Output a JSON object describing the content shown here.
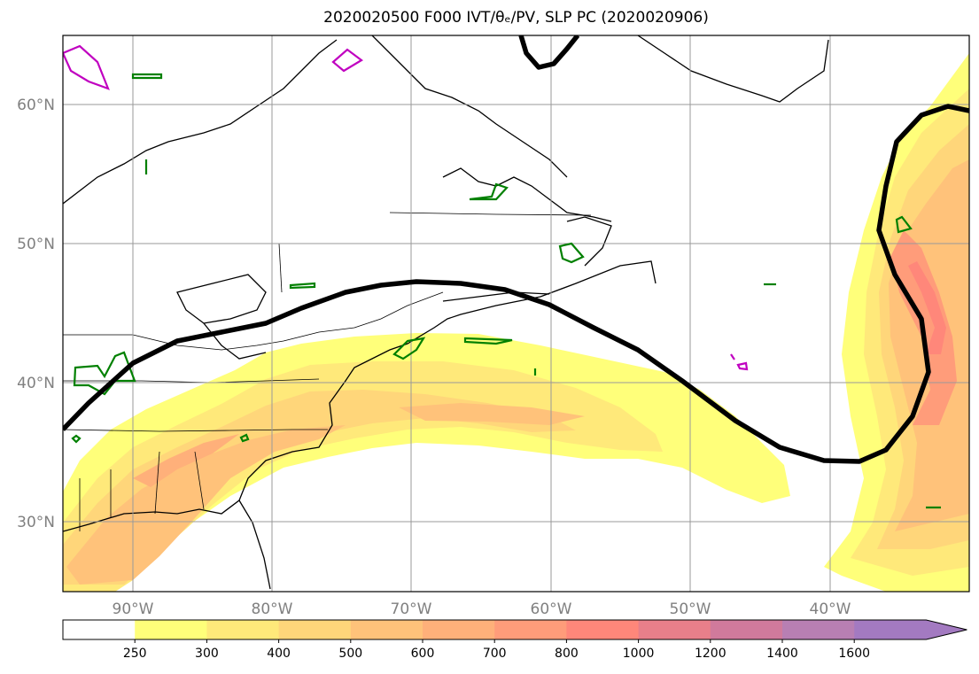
{
  "title": "2020020500 F000 IVT/θₑ/PV, SLP PC (2020020906)",
  "map": {
    "lon_range": [
      -95,
      -30
    ],
    "lat_range": [
      25,
      65
    ],
    "lon_ticks": [
      {
        "value": -90,
        "label": "90°W"
      },
      {
        "value": -80,
        "label": "80°W"
      },
      {
        "value": -70,
        "label": "70°W"
      },
      {
        "value": -60,
        "label": "60°W"
      },
      {
        "value": -50,
        "label": "50°W"
      },
      {
        "value": -40,
        "label": "40°W"
      }
    ],
    "lat_ticks": [
      {
        "value": 30,
        "label": "30°N"
      },
      {
        "value": 40,
        "label": "40°N"
      },
      {
        "value": 50,
        "label": "50°N"
      },
      {
        "value": 60,
        "label": "60°N"
      }
    ],
    "grid": true,
    "tick_label_color": "#808080"
  },
  "colorbar": {
    "levels": [
      "250",
      "300",
      "400",
      "500",
      "600",
      "700",
      "800",
      "1000",
      "1200",
      "1400",
      "1600"
    ],
    "colors": [
      "#ffffff",
      "#ffff7a",
      "#ffe97a",
      "#ffd67a",
      "#ffc27a",
      "#ffb07a",
      "#ff9c7a",
      "#ff877a",
      "#e87f8a",
      "#d07a9c",
      "#b87fb3",
      "#a37ac1"
    ],
    "extend": "max"
  },
  "contours": {
    "slp_pc": {
      "color": "#000000"
    },
    "theta_e": {
      "color": "#008000"
    },
    "pv": {
      "color": "#c000c0"
    }
  }
}
